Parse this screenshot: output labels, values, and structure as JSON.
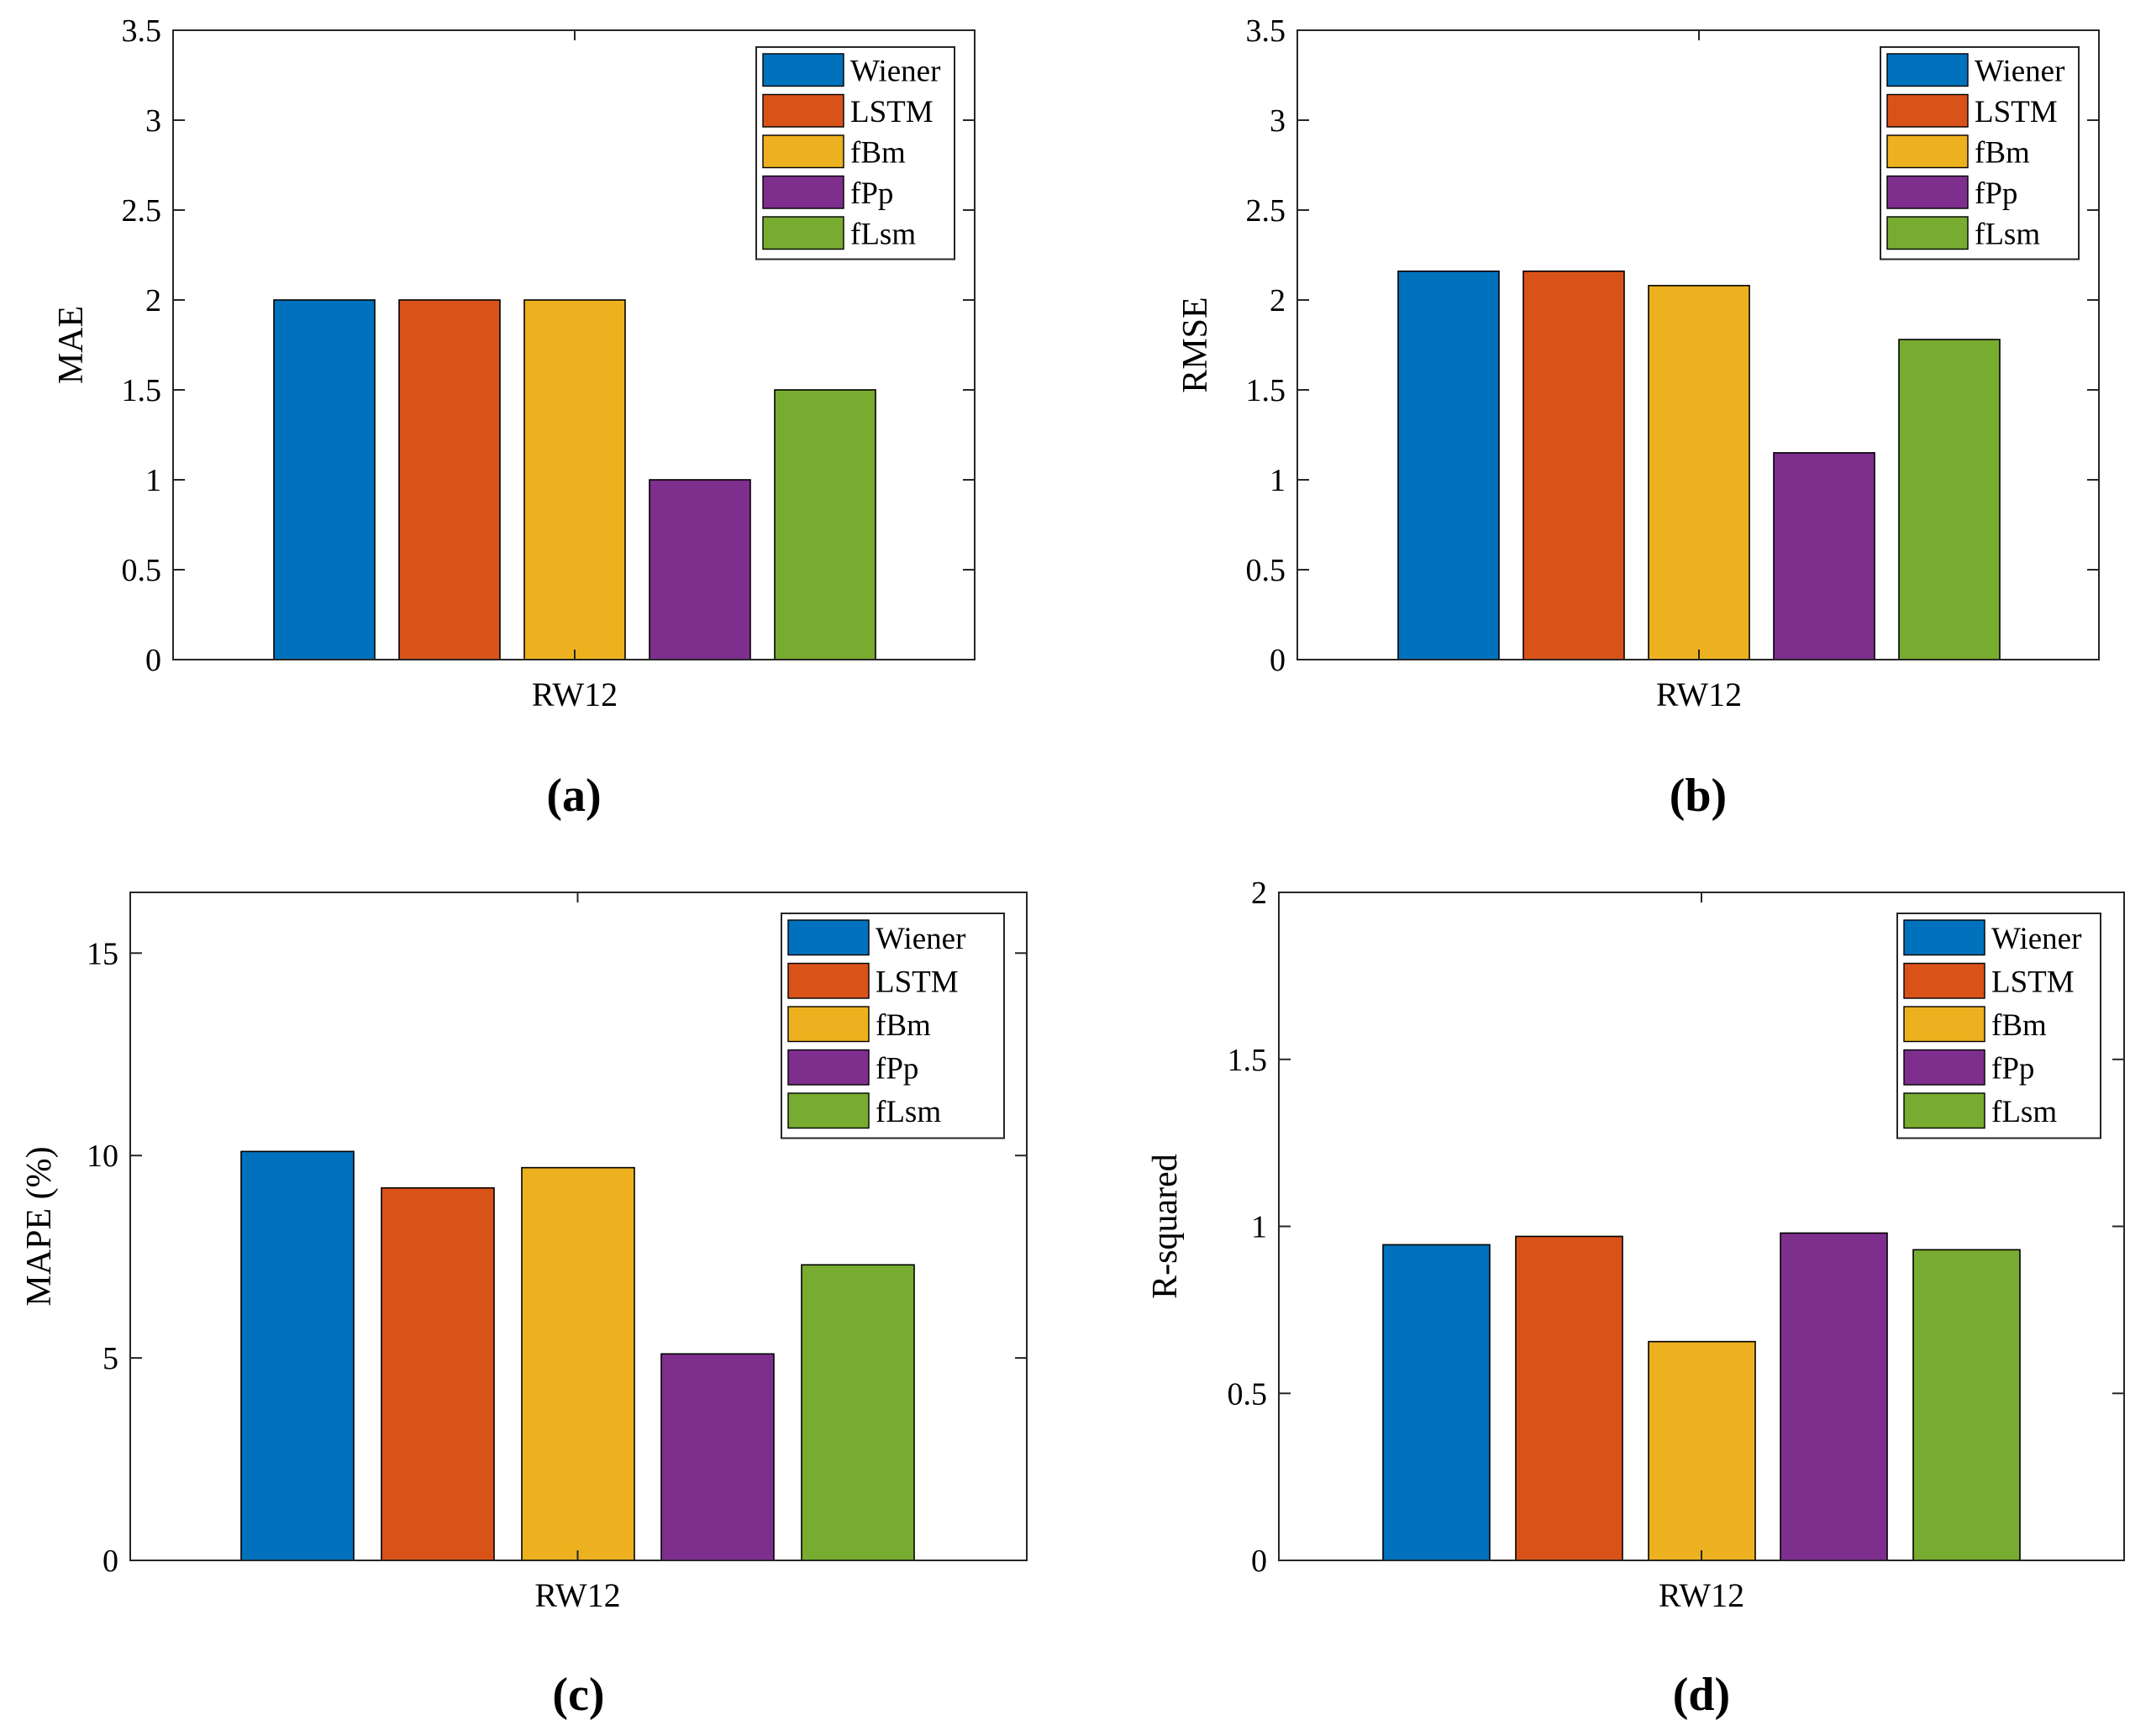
{
  "colors": {
    "series": [
      "#0072BD",
      "#D95319",
      "#EDB120",
      "#7E2F8E",
      "#77AC30"
    ],
    "axis": "#262626",
    "bar_edge": "#000000"
  },
  "chart_data": [
    {
      "type": "bar",
      "panel_label": "(a)",
      "title": "",
      "xlabel": "",
      "ylabel": "MAE",
      "categories": [
        "RW12"
      ],
      "series": [
        {
          "name": "Wiener",
          "values": [
            2.0
          ]
        },
        {
          "name": "LSTM",
          "values": [
            2.0
          ]
        },
        {
          "name": "fBm",
          "values": [
            2.0
          ]
        },
        {
          "name": "fPp",
          "values": [
            1.0
          ]
        },
        {
          "name": "fLsm",
          "values": [
            1.5
          ]
        }
      ],
      "ylim": [
        0,
        3.5
      ],
      "yticks": [
        "0",
        "0.5",
        "1",
        "1.5",
        "2",
        "2.5",
        "3",
        "3.5"
      ],
      "grid": false,
      "legend": "top-right"
    },
    {
      "type": "bar",
      "panel_label": "(b)",
      "title": "",
      "xlabel": "",
      "ylabel": "RMSE",
      "categories": [
        "RW12"
      ],
      "series": [
        {
          "name": "Wiener",
          "values": [
            2.16
          ]
        },
        {
          "name": "LSTM",
          "values": [
            2.16
          ]
        },
        {
          "name": "fBm",
          "values": [
            2.08
          ]
        },
        {
          "name": "fPp",
          "values": [
            1.15
          ]
        },
        {
          "name": "fLsm",
          "values": [
            1.78
          ]
        }
      ],
      "ylim": [
        0,
        3.5
      ],
      "yticks": [
        "0",
        "0.5",
        "1",
        "1.5",
        "2",
        "2.5",
        "3",
        "3.5"
      ],
      "grid": false,
      "legend": "top-right"
    },
    {
      "type": "bar",
      "panel_label": "(c)",
      "title": "",
      "xlabel": "",
      "ylabel": "MAPE (%)",
      "categories": [
        "RW12"
      ],
      "series": [
        {
          "name": "Wiener",
          "values": [
            10.1
          ]
        },
        {
          "name": "LSTM",
          "values": [
            9.2
          ]
        },
        {
          "name": "fBm",
          "values": [
            9.7
          ]
        },
        {
          "name": "fPp",
          "values": [
            5.1
          ]
        },
        {
          "name": "fLsm",
          "values": [
            7.3
          ]
        }
      ],
      "ylim": [
        0,
        16.5
      ],
      "yticks": [
        "0",
        "5",
        "10",
        "15"
      ],
      "grid": false,
      "legend": "top-right"
    },
    {
      "type": "bar",
      "panel_label": "(d)",
      "title": "",
      "xlabel": "",
      "ylabel": "R-squared",
      "categories": [
        "RW12"
      ],
      "series": [
        {
          "name": "Wiener",
          "values": [
            0.945
          ]
        },
        {
          "name": "LSTM",
          "values": [
            0.97
          ]
        },
        {
          "name": "fBm",
          "values": [
            0.655
          ]
        },
        {
          "name": "fPp",
          "values": [
            0.98
          ]
        },
        {
          "name": "fLsm",
          "values": [
            0.93
          ]
        }
      ],
      "ylim": [
        0,
        2
      ],
      "yticks": [
        "0",
        "0.5",
        "1",
        "1.5",
        "2"
      ],
      "grid": false,
      "legend": "top-right"
    }
  ]
}
